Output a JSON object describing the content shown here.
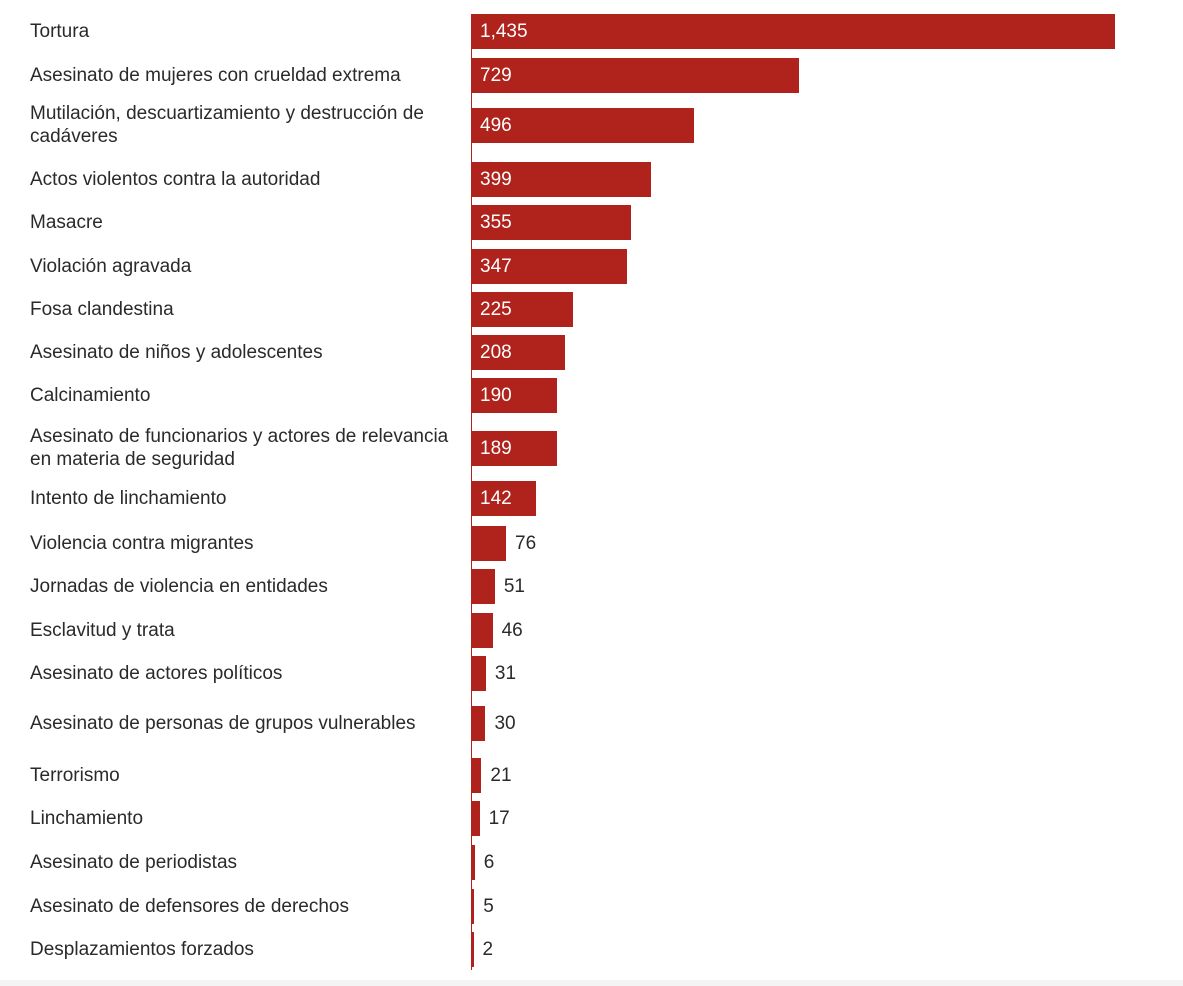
{
  "chart_data": {
    "type": "bar",
    "orientation": "horizontal",
    "bar_color": "#b0221c",
    "title": "",
    "xlabel": "",
    "ylabel": "",
    "xlim": [
      0,
      1435
    ],
    "grid": false,
    "legend": "none",
    "categories": [
      "Tortura",
      "Asesinato de mujeres con crueldad extrema",
      "Mutilación, descuartizamiento y destrucción de cadáveres",
      "Actos violentos contra la autoridad",
      "Masacre",
      "Violación agravada",
      "Fosa clandestina",
      "Asesinato de niños y adolescentes",
      "Calcinamiento",
      "Asesinato de funcionarios y actores de relevancia en materia de seguridad",
      "Intento de linchamiento",
      "Violencia contra migrantes",
      "Jornadas de violencia en entidades",
      "Esclavitud y trata",
      "Asesinato de actores políticos",
      "Asesinato de personas de grupos vulnerables",
      "Terrorismo",
      "Linchamiento",
      "Asesinato de periodistas",
      "Asesinato de defensores de derechos",
      "Desplazamientos forzados"
    ],
    "values": [
      1435,
      729,
      496,
      399,
      355,
      347,
      225,
      208,
      190,
      189,
      142,
      76,
      51,
      46,
      31,
      30,
      21,
      17,
      6,
      5,
      2
    ],
    "value_labels": [
      "1,435",
      "729",
      "496",
      "399",
      "355",
      "347",
      "225",
      "208",
      "190",
      "189",
      "142",
      "76",
      "51",
      "46",
      "31",
      "30",
      "21",
      "17",
      "6",
      "5",
      "2"
    ]
  }
}
